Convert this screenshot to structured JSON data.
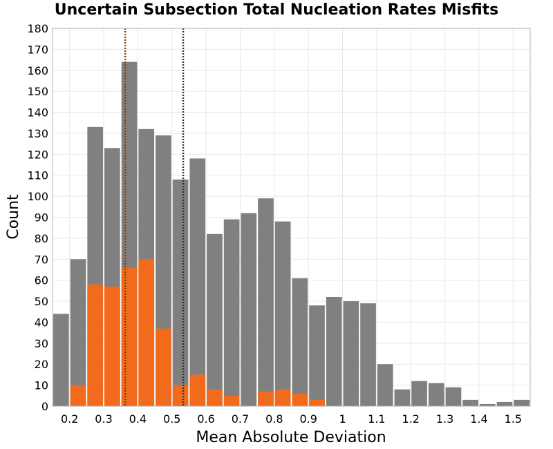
{
  "chart_data": {
    "type": "bar",
    "title": "Uncertain Subsection Total Nucleation Rates Misfits",
    "xlabel": "Mean Absolute Deviation",
    "ylabel": "Count",
    "xlim": [
      0.15,
      1.55
    ],
    "ylim": [
      0,
      180
    ],
    "bin_width": 0.05,
    "bin_starts": [
      0.15,
      0.2,
      0.25,
      0.3,
      0.35,
      0.4,
      0.45,
      0.5,
      0.55,
      0.6,
      0.65,
      0.7,
      0.75,
      0.8,
      0.85,
      0.9,
      0.95,
      1.0,
      1.05,
      1.1,
      1.15,
      1.2,
      1.25,
      1.3,
      1.35,
      1.4,
      1.45,
      1.5
    ],
    "x_ticks": [
      "0.2",
      "0.3",
      "0.4",
      "0.5",
      "0.6",
      "0.7",
      "0.8",
      "0.9",
      "1",
      "1.1",
      "1.2",
      "1.3",
      "1.4",
      "1.5"
    ],
    "x_tick_values": [
      0.2,
      0.3,
      0.4,
      0.5,
      0.6,
      0.7,
      0.8,
      0.9,
      1.0,
      1.1,
      1.2,
      1.3,
      1.4,
      1.5
    ],
    "y_ticks": [
      "0",
      "10",
      "20",
      "30",
      "40",
      "50",
      "60",
      "70",
      "80",
      "90",
      "100",
      "110",
      "120",
      "130",
      "140",
      "150",
      "160",
      "170",
      "180"
    ],
    "y_tick_values": [
      0,
      10,
      20,
      30,
      40,
      50,
      60,
      70,
      80,
      90,
      100,
      110,
      120,
      130,
      140,
      150,
      160,
      170,
      180
    ],
    "grid": true,
    "series": [
      {
        "color": "#808080",
        "values": [
          44,
          70,
          133,
          123,
          164,
          132,
          129,
          108,
          118,
          82,
          89,
          92,
          99,
          88,
          61,
          48,
          52,
          50,
          49,
          20,
          8,
          12,
          11,
          9,
          3,
          1,
          2,
          3
        ]
      },
      {
        "color": "#f26b1d",
        "values": [
          0,
          10,
          58,
          57,
          66,
          70,
          37,
          10,
          15,
          8,
          5,
          0,
          7,
          8,
          6,
          3,
          0,
          0,
          0,
          0,
          0,
          0,
          0,
          0,
          0,
          0,
          0,
          0
        ]
      }
    ],
    "reference_lines": [
      {
        "x": 0.363,
        "color": "#8b3a00",
        "style": "dotted"
      },
      {
        "x": 0.533,
        "color": "#333333",
        "style": "dotted"
      }
    ]
  }
}
